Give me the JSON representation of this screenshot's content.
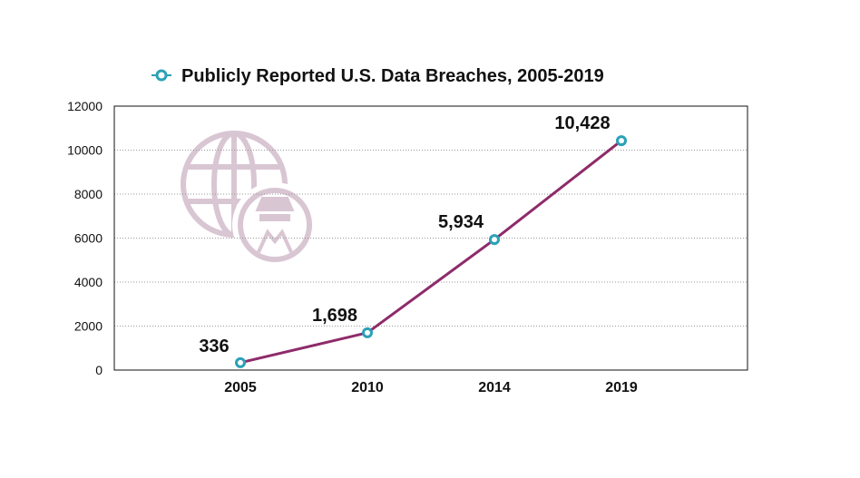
{
  "colors": {
    "line": "#8e2b6a",
    "marker": "#2aa1b6",
    "icon": "#d9c6d3",
    "grid": "#9a9a9a",
    "frame": "#111111"
  },
  "chart_data": {
    "type": "line",
    "x": [
      "2005",
      "2010",
      "2014",
      "2019"
    ],
    "series": [
      {
        "name": "Publicly Reported U.S. Data Breaches, 2005-2019",
        "values": [
          336,
          1698,
          5934,
          10428
        ]
      }
    ],
    "data_labels": [
      "336",
      "1,698",
      "5,934",
      "10,428"
    ],
    "y_ticks": [
      "0",
      "2000",
      "4000",
      "6000",
      "8000",
      "10000",
      "12000"
    ],
    "ylim": [
      0,
      12000
    ],
    "grid": "horizontal dotted",
    "legend_position": "top-center",
    "decoration_icon": "globe-with-spy-icon"
  }
}
